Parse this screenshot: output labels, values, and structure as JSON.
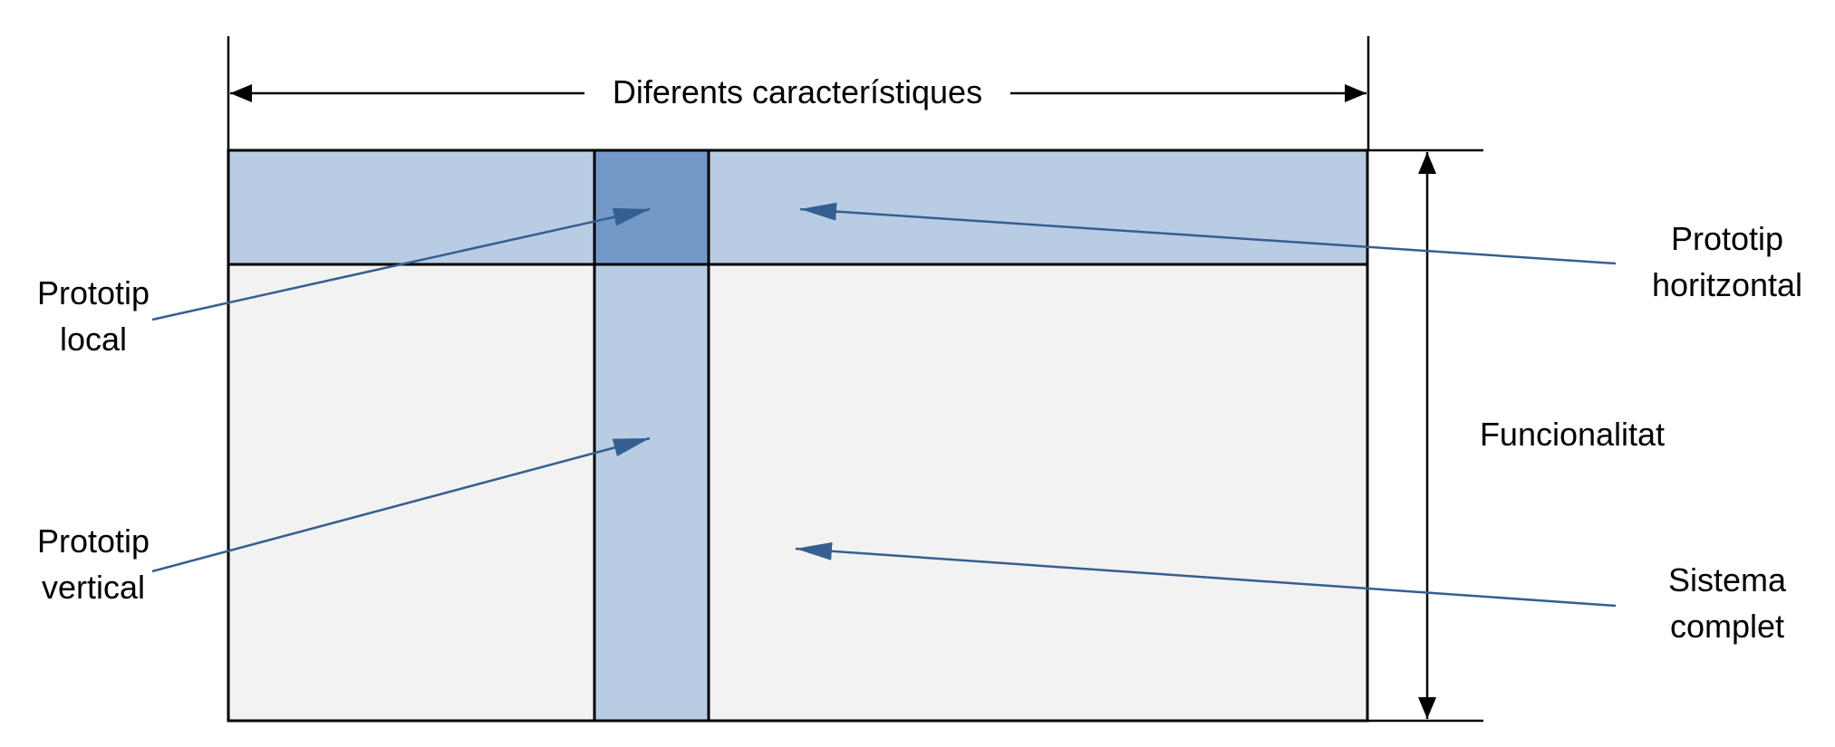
{
  "header_label": "Diferents característiques",
  "axis_label": "Funcionalitat",
  "annotations": {
    "local": [
      "Prototip",
      "local"
    ],
    "vertical": [
      "Prototip",
      "vertical"
    ],
    "horizontal": [
      "Prototip",
      "horitzontal"
    ],
    "complete": [
      "Sistema",
      "complet"
    ]
  },
  "colors": {
    "full_system_fill": "#f2f2f2",
    "prototype_fill": "#b8cce4",
    "intersection_fill": "#7399c9",
    "arrow_color": "#365f91",
    "line_color": "#000000"
  }
}
